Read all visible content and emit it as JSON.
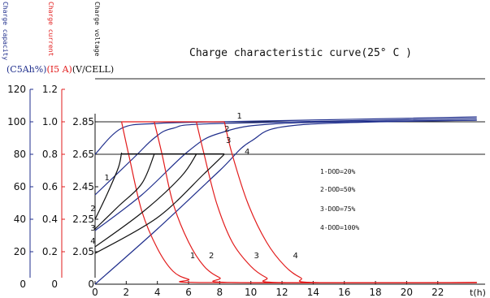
{
  "header": {
    "axis_headings": {
      "capacity": "Charge capacity",
      "current": "Charge current",
      "voltage": "Charge voltage"
    },
    "title": "Charge characteristic curve(25° C )",
    "units": {
      "capacity": "(C5Ah%)",
      "current": "(I5 A)",
      "voltage": "(V/CELL)"
    }
  },
  "colors": {
    "capacity": "#1f2e8c",
    "current": "#e21b1b",
    "voltage": "#111111",
    "axis": "#111111"
  },
  "chart_data": {
    "type": "line",
    "title": "Charge characteristic curve(25° C )",
    "xlabel": "t(h)",
    "xlim": [
      0,
      24.5
    ],
    "x_ticks": [
      0,
      2,
      4,
      6,
      8,
      10,
      12,
      14,
      16,
      18,
      20,
      22
    ],
    "x_tick_labels": [
      "0",
      "2",
      "4",
      "6",
      "8",
      "10",
      "12",
      "14",
      "16",
      "18",
      "20",
      "22"
    ],
    "y_axes": [
      {
        "name": "capacity",
        "label": "(C5Ah%)",
        "ticks": [
          "0",
          "20",
          "40",
          "60",
          "80",
          "100",
          "120"
        ]
      },
      {
        "name": "current",
        "label": "(I5 A)",
        "ticks": [
          "0",
          "0.2",
          "0.4",
          "0.6",
          "0.8",
          "1.0",
          "1.2"
        ]
      },
      {
        "name": "voltage",
        "label": "(V/CELL)",
        "ticks": [
          "0",
          "2.05",
          "2.25",
          "2.45",
          "2.65",
          "2.85"
        ]
      }
    ],
    "y_scale_note": "values below use the capacity scale 0–120; current = value/100 (I5 A)",
    "reference_lines": [
      100,
      80
    ],
    "series": [
      {
        "group": "capacity",
        "label": "1",
        "points": [
          [
            0,
            80
          ],
          [
            1.7,
            96
          ],
          [
            4,
            99
          ],
          [
            8,
            100
          ],
          [
            24.5,
            103
          ]
        ]
      },
      {
        "group": "capacity",
        "label": "2",
        "points": [
          [
            0,
            55
          ],
          [
            2.5,
            78
          ],
          [
            3.8,
            90
          ],
          [
            5,
            96
          ],
          [
            8,
            99
          ],
          [
            24.5,
            102
          ]
        ]
      },
      {
        "group": "capacity",
        "label": "3",
        "points": [
          [
            0,
            33
          ],
          [
            3,
            55
          ],
          [
            6,
            82
          ],
          [
            8,
            93
          ],
          [
            12,
            99
          ],
          [
            24.5,
            101
          ]
        ]
      },
      {
        "group": "capacity",
        "label": "4",
        "points": [
          [
            0,
            0
          ],
          [
            4,
            34
          ],
          [
            8,
            70
          ],
          [
            10,
            88
          ],
          [
            13,
            98
          ],
          [
            24.5,
            101
          ]
        ]
      },
      {
        "group": "current",
        "label": "1",
        "points": [
          [
            1.7,
            100
          ],
          [
            2.2,
            78
          ],
          [
            3,
            45
          ],
          [
            4,
            22
          ],
          [
            5,
            8
          ],
          [
            6,
            3
          ],
          [
            7,
            1
          ],
          [
            24.5,
            1
          ]
        ]
      },
      {
        "group": "current",
        "label": "2",
        "points": [
          [
            3.8,
            100
          ],
          [
            4.3,
            80
          ],
          [
            5,
            50
          ],
          [
            6,
            26
          ],
          [
            7,
            11
          ],
          [
            8,
            4
          ],
          [
            9,
            1
          ],
          [
            24.5,
            1
          ]
        ]
      },
      {
        "group": "current",
        "label": "3",
        "points": [
          [
            6.5,
            100
          ],
          [
            7,
            80
          ],
          [
            7.8,
            50
          ],
          [
            8.8,
            26
          ],
          [
            10,
            11
          ],
          [
            11,
            4
          ],
          [
            12,
            1
          ],
          [
            24.5,
            1
          ]
        ]
      },
      {
        "group": "current",
        "label": "4",
        "points": [
          [
            8.3,
            100
          ],
          [
            8.8,
            80
          ],
          [
            9.8,
            50
          ],
          [
            11,
            26
          ],
          [
            12.2,
            11
          ],
          [
            13.2,
            4
          ],
          [
            14.2,
            1
          ],
          [
            24.5,
            1
          ]
        ]
      },
      {
        "group": "voltage",
        "label": "1",
        "points": [
          [
            0,
            40
          ],
          [
            0.8,
            56
          ],
          [
            1.5,
            72
          ],
          [
            1.7,
            81
          ]
        ]
      },
      {
        "group": "voltage",
        "label": "2",
        "points": [
          [
            0,
            34
          ],
          [
            1.5,
            48
          ],
          [
            3,
            62
          ],
          [
            3.8,
            80
          ]
        ]
      },
      {
        "group": "voltage",
        "label": "3",
        "points": [
          [
            0,
            23
          ],
          [
            3,
            44
          ],
          [
            5.5,
            66
          ],
          [
            6.5,
            80
          ]
        ]
      },
      {
        "group": "voltage",
        "label": "4",
        "points": [
          [
            0,
            19
          ],
          [
            4,
            41
          ],
          [
            7,
            68
          ],
          [
            8.3,
            80
          ]
        ]
      }
    ],
    "series_number_labels": [
      {
        "text": "1",
        "x": 9.1,
        "y": 102
      },
      {
        "text": "2",
        "x": 8.3,
        "y": 94
      },
      {
        "text": "3",
        "x": 8.4,
        "y": 87
      },
      {
        "text": "4",
        "x": 9.6,
        "y": 80
      },
      {
        "text": "1",
        "x": 0.6,
        "y": 64
      },
      {
        "text": "2",
        "x": -0.3,
        "y": 45
      },
      {
        "text": "3",
        "x": -0.3,
        "y": 33
      },
      {
        "text": "4",
        "x": -0.3,
        "y": 25
      },
      {
        "text": "1",
        "x": 6.1,
        "y": 16
      },
      {
        "text": "2",
        "x": 7.3,
        "y": 16
      },
      {
        "text": "3",
        "x": 10.2,
        "y": 16
      },
      {
        "text": "4",
        "x": 12.7,
        "y": 16
      }
    ],
    "notes": [
      "1-DOD=20%",
      "2-DOD=50%",
      "3-DOD=75%",
      "4-DOD=100%"
    ]
  }
}
